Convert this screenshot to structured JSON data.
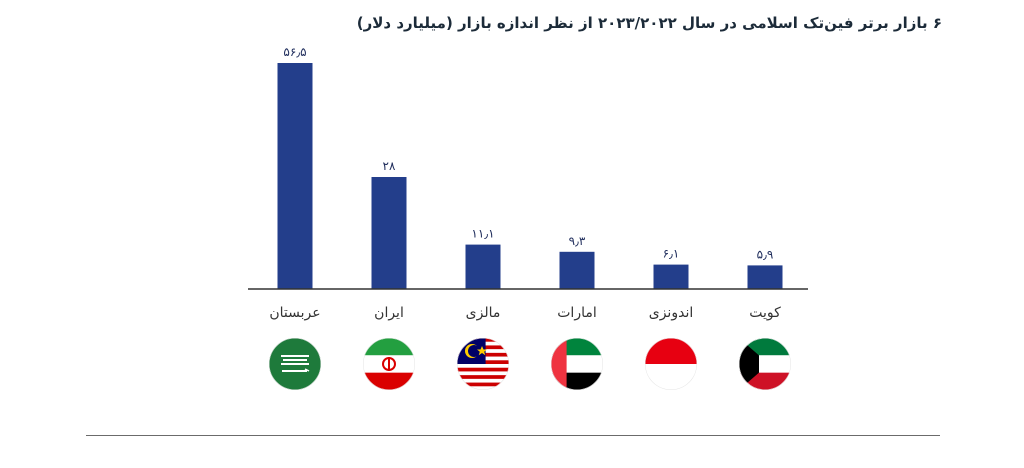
{
  "title": "۶ بازار برتر فین‌تک اسلامی در سال ۲۰۲۳/۲۰۲۲ از نظر اندازه بازار (میلیارد دلار)",
  "colors": {
    "bar": "#233e8b",
    "axis": "#333333",
    "value_text": "#1f2d5c"
  },
  "chart_data": {
    "type": "bar",
    "categories": [
      "عربستان",
      "ایران",
      "مالزی",
      "امارات",
      "اندونزی",
      "کویت"
    ],
    "values": [
      56.5,
      28,
      11.1,
      9.3,
      6.1,
      5.9
    ],
    "value_labels": [
      "۵۶٫۵",
      "۲۸",
      "۱۱٫۱",
      "۹٫۳",
      "۶٫۱",
      "۵٫۹"
    ],
    "flags": [
      "saudi-arabia-flag-icon",
      "iran-flag-icon",
      "malaysia-flag-icon",
      "uae-flag-icon",
      "indonesia-flag-icon",
      "kuwait-flag-icon"
    ],
    "ylim": [
      0,
      56.5
    ],
    "grid": false,
    "legend": "none"
  }
}
